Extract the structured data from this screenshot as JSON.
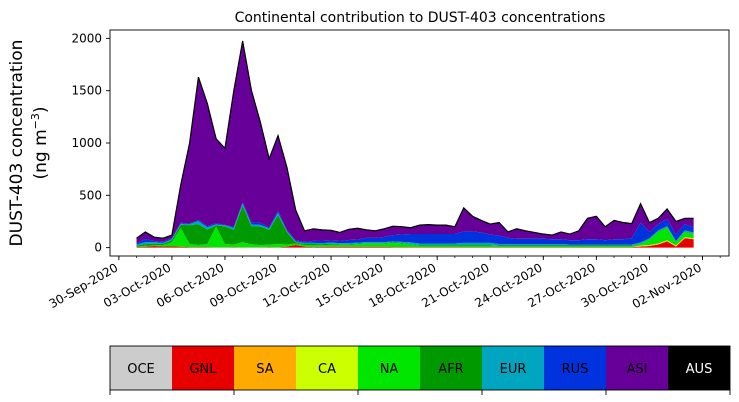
{
  "chart_data": {
    "type": "area",
    "stacked": true,
    "title": "Continental contribution to DUST-403 concentrations",
    "ylabel_line1": "DUST-403 concentration",
    "ylabel_line2_prefix": "(ng m",
    "ylabel_line2_sup": "−3",
    "ylabel_line2_suffix": ")",
    "x_start": "2020-10-01",
    "x_step_days": 0.5,
    "xlim": [
      "2020-09-29T12:00",
      "2020-11-03T12:00"
    ],
    "ylim": [
      -80,
      2080
    ],
    "yticks": [
      0,
      500,
      1000,
      1500,
      2000
    ],
    "xticks": [
      {
        "date": "2020-09-30",
        "label": "30-Sep-2020"
      },
      {
        "date": "2020-10-03",
        "label": "03-Oct-2020"
      },
      {
        "date": "2020-10-06",
        "label": "06-Oct-2020"
      },
      {
        "date": "2020-10-09",
        "label": "09-Oct-2020"
      },
      {
        "date": "2020-10-12",
        "label": "12-Oct-2020"
      },
      {
        "date": "2020-10-15",
        "label": "15-Oct-2020"
      },
      {
        "date": "2020-10-18",
        "label": "18-Oct-2020"
      },
      {
        "date": "2020-10-21",
        "label": "21-Oct-2020"
      },
      {
        "date": "2020-10-24",
        "label": "24-Oct-2020"
      },
      {
        "date": "2020-10-27",
        "label": "27-Oct-2020"
      },
      {
        "date": "2020-10-30",
        "label": "30-Oct-2020"
      },
      {
        "date": "2020-11-02",
        "label": "02-Nov-2020"
      }
    ],
    "total": [
      90,
      150,
      100,
      90,
      120,
      600,
      1000,
      1630,
      1380,
      1040,
      950,
      1500,
      1975,
      1500,
      1200,
      850,
      1070,
      770,
      360,
      160,
      180,
      170,
      165,
      145,
      175,
      185,
      170,
      160,
      180,
      205,
      200,
      190,
      215,
      220,
      215,
      215,
      200,
      380,
      300,
      260,
      225,
      240,
      150,
      180,
      160,
      145,
      130,
      120,
      150,
      130,
      160,
      280,
      300,
      200,
      260,
      240,
      230,
      420,
      240,
      280,
      370,
      250,
      280,
      280
    ],
    "series": [
      {
        "name": "GNL",
        "color": "#e60000",
        "values": [
          5,
          8,
          15,
          10,
          12,
          8,
          5,
          5,
          5,
          3,
          3,
          5,
          3,
          2,
          3,
          5,
          3,
          10,
          25,
          10,
          5,
          8,
          8,
          8,
          8,
          8,
          8,
          8,
          8,
          5,
          5,
          5,
          5,
          5,
          5,
          5,
          5,
          5,
          5,
          5,
          5,
          5,
          5,
          5,
          5,
          5,
          5,
          5,
          5,
          5,
          5,
          5,
          5,
          5,
          5,
          5,
          5,
          10,
          15,
          30,
          60,
          10,
          90,
          80
        ]
      },
      {
        "name": "SA",
        "color": "#ffaa00",
        "values": [
          0,
          0,
          0,
          0,
          0,
          0,
          0,
          0,
          0,
          0,
          0,
          0,
          0,
          0,
          0,
          0,
          0,
          0,
          0,
          0,
          0,
          0,
          0,
          0,
          0,
          0,
          0,
          0,
          0,
          0,
          0,
          0,
          0,
          0,
          0,
          0,
          0,
          0,
          0,
          0,
          0,
          0,
          0,
          0,
          0,
          0,
          0,
          0,
          0,
          0,
          0,
          0,
          0,
          0,
          0,
          0,
          0,
          5,
          5,
          5,
          5,
          5,
          5,
          5
        ]
      },
      {
        "name": "CA",
        "color": "#ccff00",
        "values": [
          0,
          0,
          0,
          0,
          0,
          0,
          0,
          0,
          0,
          0,
          0,
          0,
          0,
          0,
          0,
          0,
          0,
          0,
          0,
          0,
          0,
          0,
          0,
          0,
          0,
          0,
          0,
          0,
          0,
          0,
          0,
          0,
          0,
          0,
          0,
          0,
          0,
          0,
          0,
          0,
          0,
          0,
          0,
          0,
          0,
          0,
          0,
          0,
          0,
          0,
          0,
          0,
          0,
          0,
          0,
          0,
          0,
          5,
          5,
          5,
          5,
          5,
          5,
          5
        ]
      },
      {
        "name": "NA",
        "color": "#00e600",
        "values": [
          5,
          10,
          8,
          15,
          40,
          180,
          30,
          20,
          30,
          200,
          30,
          25,
          50,
          30,
          20,
          25,
          30,
          20,
          15,
          15,
          20,
          15,
          20,
          20,
          20,
          25,
          30,
          30,
          30,
          40,
          35,
          25,
          15,
          15,
          15,
          15,
          15,
          15,
          15,
          15,
          15,
          10,
          10,
          10,
          10,
          10,
          10,
          10,
          10,
          10,
          10,
          10,
          10,
          10,
          10,
          10,
          10,
          15,
          50,
          110,
          120,
          30,
          50,
          40
        ]
      },
      {
        "name": "AFR",
        "color": "#009900",
        "values": [
          10,
          15,
          15,
          10,
          20,
          30,
          180,
          200,
          140,
          10,
          170,
          140,
          350,
          170,
          180,
          140,
          280,
          120,
          10,
          10,
          10,
          10,
          10,
          5,
          5,
          5,
          5,
          5,
          5,
          5,
          5,
          5,
          5,
          5,
          5,
          5,
          5,
          5,
          5,
          5,
          5,
          5,
          5,
          5,
          5,
          5,
          5,
          5,
          5,
          5,
          5,
          5,
          5,
          5,
          5,
          5,
          5,
          5,
          5,
          5,
          5,
          5,
          5,
          5
        ]
      },
      {
        "name": "EUR",
        "color": "#00a6bf",
        "values": [
          10,
          20,
          15,
          10,
          10,
          10,
          10,
          30,
          20,
          10,
          10,
          20,
          20,
          20,
          15,
          15,
          20,
          10,
          10,
          10,
          10,
          10,
          10,
          10,
          10,
          10,
          10,
          10,
          10,
          10,
          10,
          15,
          15,
          15,
          15,
          15,
          15,
          20,
          20,
          20,
          20,
          15,
          15,
          15,
          15,
          15,
          15,
          15,
          15,
          10,
          10,
          10,
          10,
          10,
          10,
          10,
          10,
          10,
          10,
          10,
          10,
          10,
          10,
          10
        ]
      },
      {
        "name": "RUS",
        "color": "#0033dd",
        "values": [
          10,
          30,
          10,
          10,
          10,
          10,
          5,
          10,
          10,
          10,
          5,
          10,
          10,
          20,
          20,
          10,
          20,
          10,
          10,
          10,
          20,
          20,
          20,
          20,
          30,
          30,
          40,
          40,
          50,
          60,
          70,
          80,
          90,
          90,
          90,
          90,
          90,
          110,
          110,
          100,
          80,
          80,
          60,
          50,
          50,
          50,
          50,
          45,
          45,
          40,
          40,
          50,
          50,
          40,
          50,
          50,
          60,
          190,
          60,
          60,
          70,
          60,
          60,
          50
        ]
      },
      {
        "name": "OCE",
        "color": "#cccccc",
        "values": [
          0,
          0,
          0,
          0,
          0,
          0,
          0,
          0,
          0,
          0,
          0,
          0,
          0,
          0,
          0,
          0,
          0,
          0,
          0,
          0,
          0,
          0,
          0,
          0,
          0,
          0,
          0,
          0,
          0,
          0,
          0,
          0,
          0,
          0,
          0,
          0,
          0,
          0,
          0,
          0,
          0,
          0,
          0,
          0,
          0,
          0,
          0,
          0,
          0,
          0,
          0,
          0,
          0,
          0,
          0,
          0,
          0,
          0,
          0,
          0,
          0,
          0,
          0,
          0
        ]
      },
      {
        "name": "AUS",
        "color": "#000000",
        "values": [
          0,
          0,
          0,
          0,
          0,
          0,
          0,
          0,
          0,
          0,
          0,
          0,
          0,
          0,
          0,
          0,
          0,
          0,
          0,
          0,
          0,
          0,
          0,
          0,
          0,
          0,
          0,
          0,
          0,
          0,
          0,
          0,
          0,
          0,
          0,
          0,
          0,
          0,
          0,
          0,
          0,
          0,
          0,
          0,
          0,
          0,
          0,
          0,
          0,
          0,
          0,
          0,
          0,
          0,
          0,
          0,
          0,
          0,
          0,
          0,
          0,
          0,
          0,
          0
        ]
      }
    ],
    "residual": {
      "name": "ASI",
      "color": "#660099"
    },
    "outline_color": "#000000",
    "legend": [
      {
        "label": "OCE",
        "color": "#cccccc",
        "text_color": "#000000"
      },
      {
        "label": "GNL",
        "color": "#e60000",
        "text_color": "#000000"
      },
      {
        "label": "SA",
        "color": "#ffaa00",
        "text_color": "#000000"
      },
      {
        "label": "CA",
        "color": "#ccff00",
        "text_color": "#000000"
      },
      {
        "label": "NA",
        "color": "#00e600",
        "text_color": "#000000"
      },
      {
        "label": "AFR",
        "color": "#009900",
        "text_color": "#000000"
      },
      {
        "label": "EUR",
        "color": "#00a6bf",
        "text_color": "#000000"
      },
      {
        "label": "RUS",
        "color": "#0033dd",
        "text_color": "#000000"
      },
      {
        "label": "ASI",
        "color": "#660099",
        "text_color": "#000000"
      },
      {
        "label": "AUS",
        "color": "#000000",
        "text_color": "#ffffff"
      }
    ],
    "legend_placement": "bottom"
  }
}
